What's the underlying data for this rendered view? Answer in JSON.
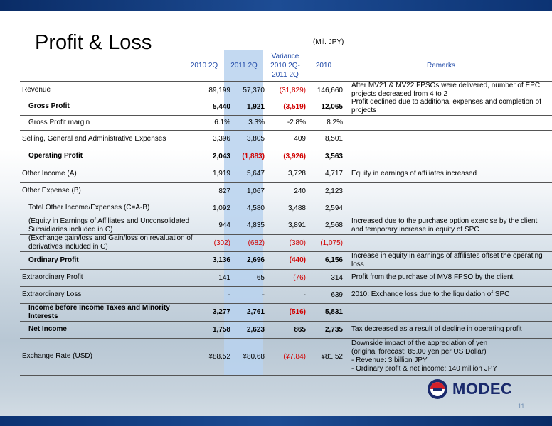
{
  "title": "Profit & Loss",
  "unit": "(Mil. JPY)",
  "headers": {
    "col1": "2010 2Q",
    "col2": "2011 2Q",
    "col3_line1": "Variance",
    "col3_line2": "2010 2Q-",
    "col3_line3": "2011 2Q",
    "col4": "2010",
    "remarks": "Remarks"
  },
  "rows": [
    {
      "label": "Revenue",
      "v1": "89,199",
      "v2": "57,370",
      "v3": "(31,829)",
      "v4": "146,660",
      "remark": "After MV21 & MV22 FPSOs were delivered, number of EPCI projects decreased from 4 to 2"
    },
    {
      "label": "Gross Profit",
      "v1": "5,440",
      "v2": "1,921",
      "v3": "(3,519)",
      "v4": "12,065",
      "remark": "Profit declined due to additional expenses and completion of projects"
    },
    {
      "label": "Gross Profit margin",
      "v1": "6.1%",
      "v2": "3.3%",
      "v3": "-2.8%",
      "v4": "8.2%",
      "remark": ""
    },
    {
      "label": "Selling, General and Administrative Expenses",
      "v1": "3,396",
      "v2": "3,805",
      "v3": "409",
      "v4": "8,501",
      "remark": ""
    },
    {
      "label": "Operating Profit",
      "v1": "2,043",
      "v2": "(1,883)",
      "v3": "(3,926)",
      "v4": "3,563",
      "remark": ""
    },
    {
      "label": "Other Income (A)",
      "v1": "1,919",
      "v2": "5,647",
      "v3": "3,728",
      "v4": "4,717",
      "remark": "Equity in earnings of affiliates increased"
    },
    {
      "label": "Other Expense (B)",
      "v1": "827",
      "v2": "1,067",
      "v3": "240",
      "v4": "2,123",
      "remark": ""
    },
    {
      "label": "Total Other Income/Expenses (C=A-B)",
      "v1": "1,092",
      "v2": "4,580",
      "v3": "3,488",
      "v4": "2,594",
      "remark": ""
    },
    {
      "label": "(Equity in Earnings of Affiliates and Unconsolidated Subsidiaries included in C)",
      "v1": "944",
      "v2": "4,835",
      "v3": "3,891",
      "v4": "2,568",
      "remark": "Increased due to the purchase option exercise by the client and temporary increase in equity of SPC"
    },
    {
      "label": "(Exchange gain/loss and Gain/loss on revaluation of derivatives included in C)",
      "v1": "(302)",
      "v2": "(682)",
      "v3": "(380)",
      "v4": "(1,075)",
      "remark": ""
    },
    {
      "label": "Ordinary Profit",
      "v1": "3,136",
      "v2": "2,696",
      "v3": "(440)",
      "v4": "6,156",
      "remark": "Increase in equity in earnings of affiliates offset the operating loss"
    },
    {
      "label": "Extraordinary Profit",
      "v1": "141",
      "v2": "65",
      "v3": "(76)",
      "v4": "314",
      "remark": "Profit from the purchase of MV8 FPSO by the client"
    },
    {
      "label": "Extraordinary Loss",
      "v1": "-",
      "v2": "-",
      "v3": "-",
      "v4": "639",
      "remark": "2010: Exchange loss due to the liquidation of SPC"
    },
    {
      "label": "Income before Income Taxes and Minority Interests",
      "v1": "3,277",
      "v2": "2,761",
      "v3": "(516)",
      "v4": "5,831",
      "remark": ""
    },
    {
      "label": "Net Income",
      "v1": "1,758",
      "v2": "2,623",
      "v3": "865",
      "v4": "2,735",
      "remark": "Tax decreased as a result of decline in operating profit"
    },
    {
      "label": "Exchange Rate (USD)",
      "v1": "¥88.52",
      "v2": "¥80.68",
      "v3": "(¥7.84)",
      "v4": "¥81.52",
      "remark_lines": [
        "Downside impact of the appreciation of yen",
        "(original forecast: 85.00 yen per US Dollar)",
        "- Revenue: 3 billion JPY",
        "- Ordinary profit & net income: 140 million JPY"
      ]
    }
  ],
  "logo": {
    "text": "MODEC"
  },
  "page_number": "11",
  "colors": {
    "header_text": "#1f49a8",
    "negative": "#d10000",
    "highlight_col": "#b8d2ef",
    "bar": "#1d4c94"
  }
}
